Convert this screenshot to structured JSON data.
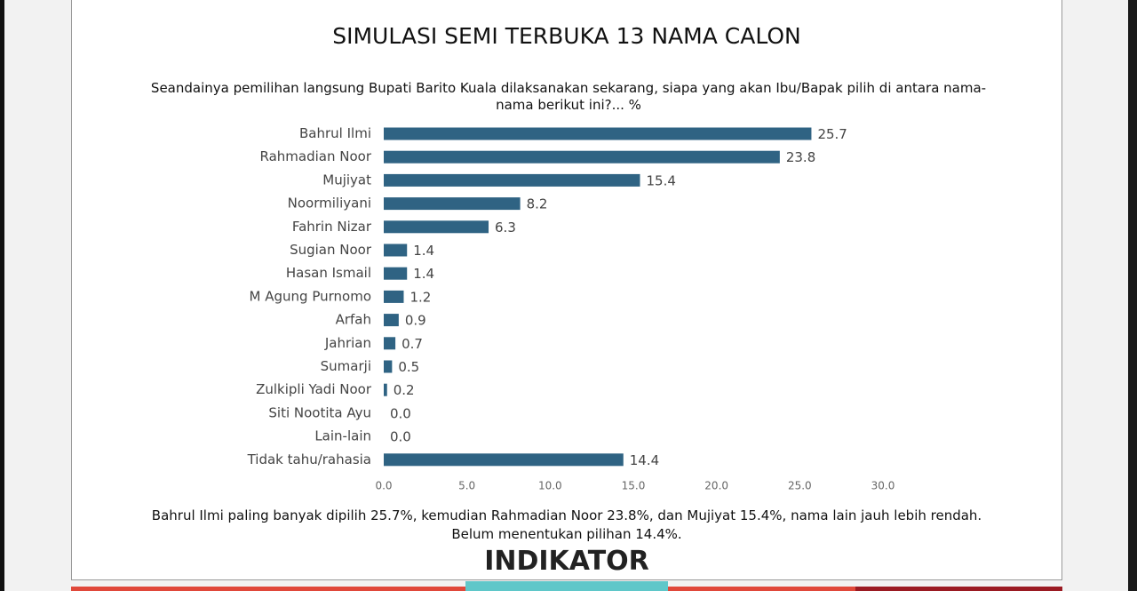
{
  "chart_data": {
    "type": "bar",
    "orientation": "horizontal",
    "title": "SIMULASI SEMI TERBUKA 13 NAMA CALON",
    "subtitle": "Seandainya pemilihan langsung Bupati Barito Kuala dilaksanakan sekarang, siapa yang akan Ibu/Bapak pilih di antara nama-nama berikut ini?... %",
    "categories": [
      "Bahrul Ilmi",
      "Rahmadian Noor",
      "Mujiyat",
      "Noormiliyani",
      "Fahrin Nizar",
      "Sugian Noor",
      "Hasan Ismail",
      "M Agung Purnomo",
      "Arfah",
      "Jahrian",
      "Sumarji",
      "Zulkipli Yadi Noor",
      "Siti Nootita Ayu",
      "Lain-lain",
      "Tidak tahu/rahasia"
    ],
    "values": [
      25.7,
      23.8,
      15.4,
      8.2,
      6.3,
      1.4,
      1.4,
      1.2,
      0.9,
      0.7,
      0.5,
      0.2,
      0,
      0,
      14.4
    ],
    "value_labels": [
      "25.7",
      "23.8",
      "15.4",
      "8.2",
      "6.3",
      "1.4",
      "1.4",
      "1.2",
      "0.9",
      "0.7",
      "0.5",
      "0.2",
      "0.0",
      "0.0",
      "14.4"
    ],
    "color": "#2f6383",
    "xlim": [
      0,
      30
    ],
    "xticks": [
      {
        "value": 0,
        "label": "0.0"
      },
      {
        "value": 5,
        "label": "5.0"
      },
      {
        "value": 10,
        "label": "10.0"
      },
      {
        "value": 15,
        "label": "15.0"
      },
      {
        "value": 20,
        "label": "20.0"
      },
      {
        "value": 25,
        "label": "25.0"
      },
      {
        "value": 30,
        "label": "30.0"
      }
    ],
    "grid": false,
    "notes": [
      "Bahrul Ilmi paling banyak dipilih 25.7%, kemudian Rahmadian Noor 23.8%, dan Mujiyat 15.4%, nama lain jauh lebih rendah.",
      "Belum menentukan pilihan 14.4%."
    ],
    "logo": "INDIKATOR"
  }
}
